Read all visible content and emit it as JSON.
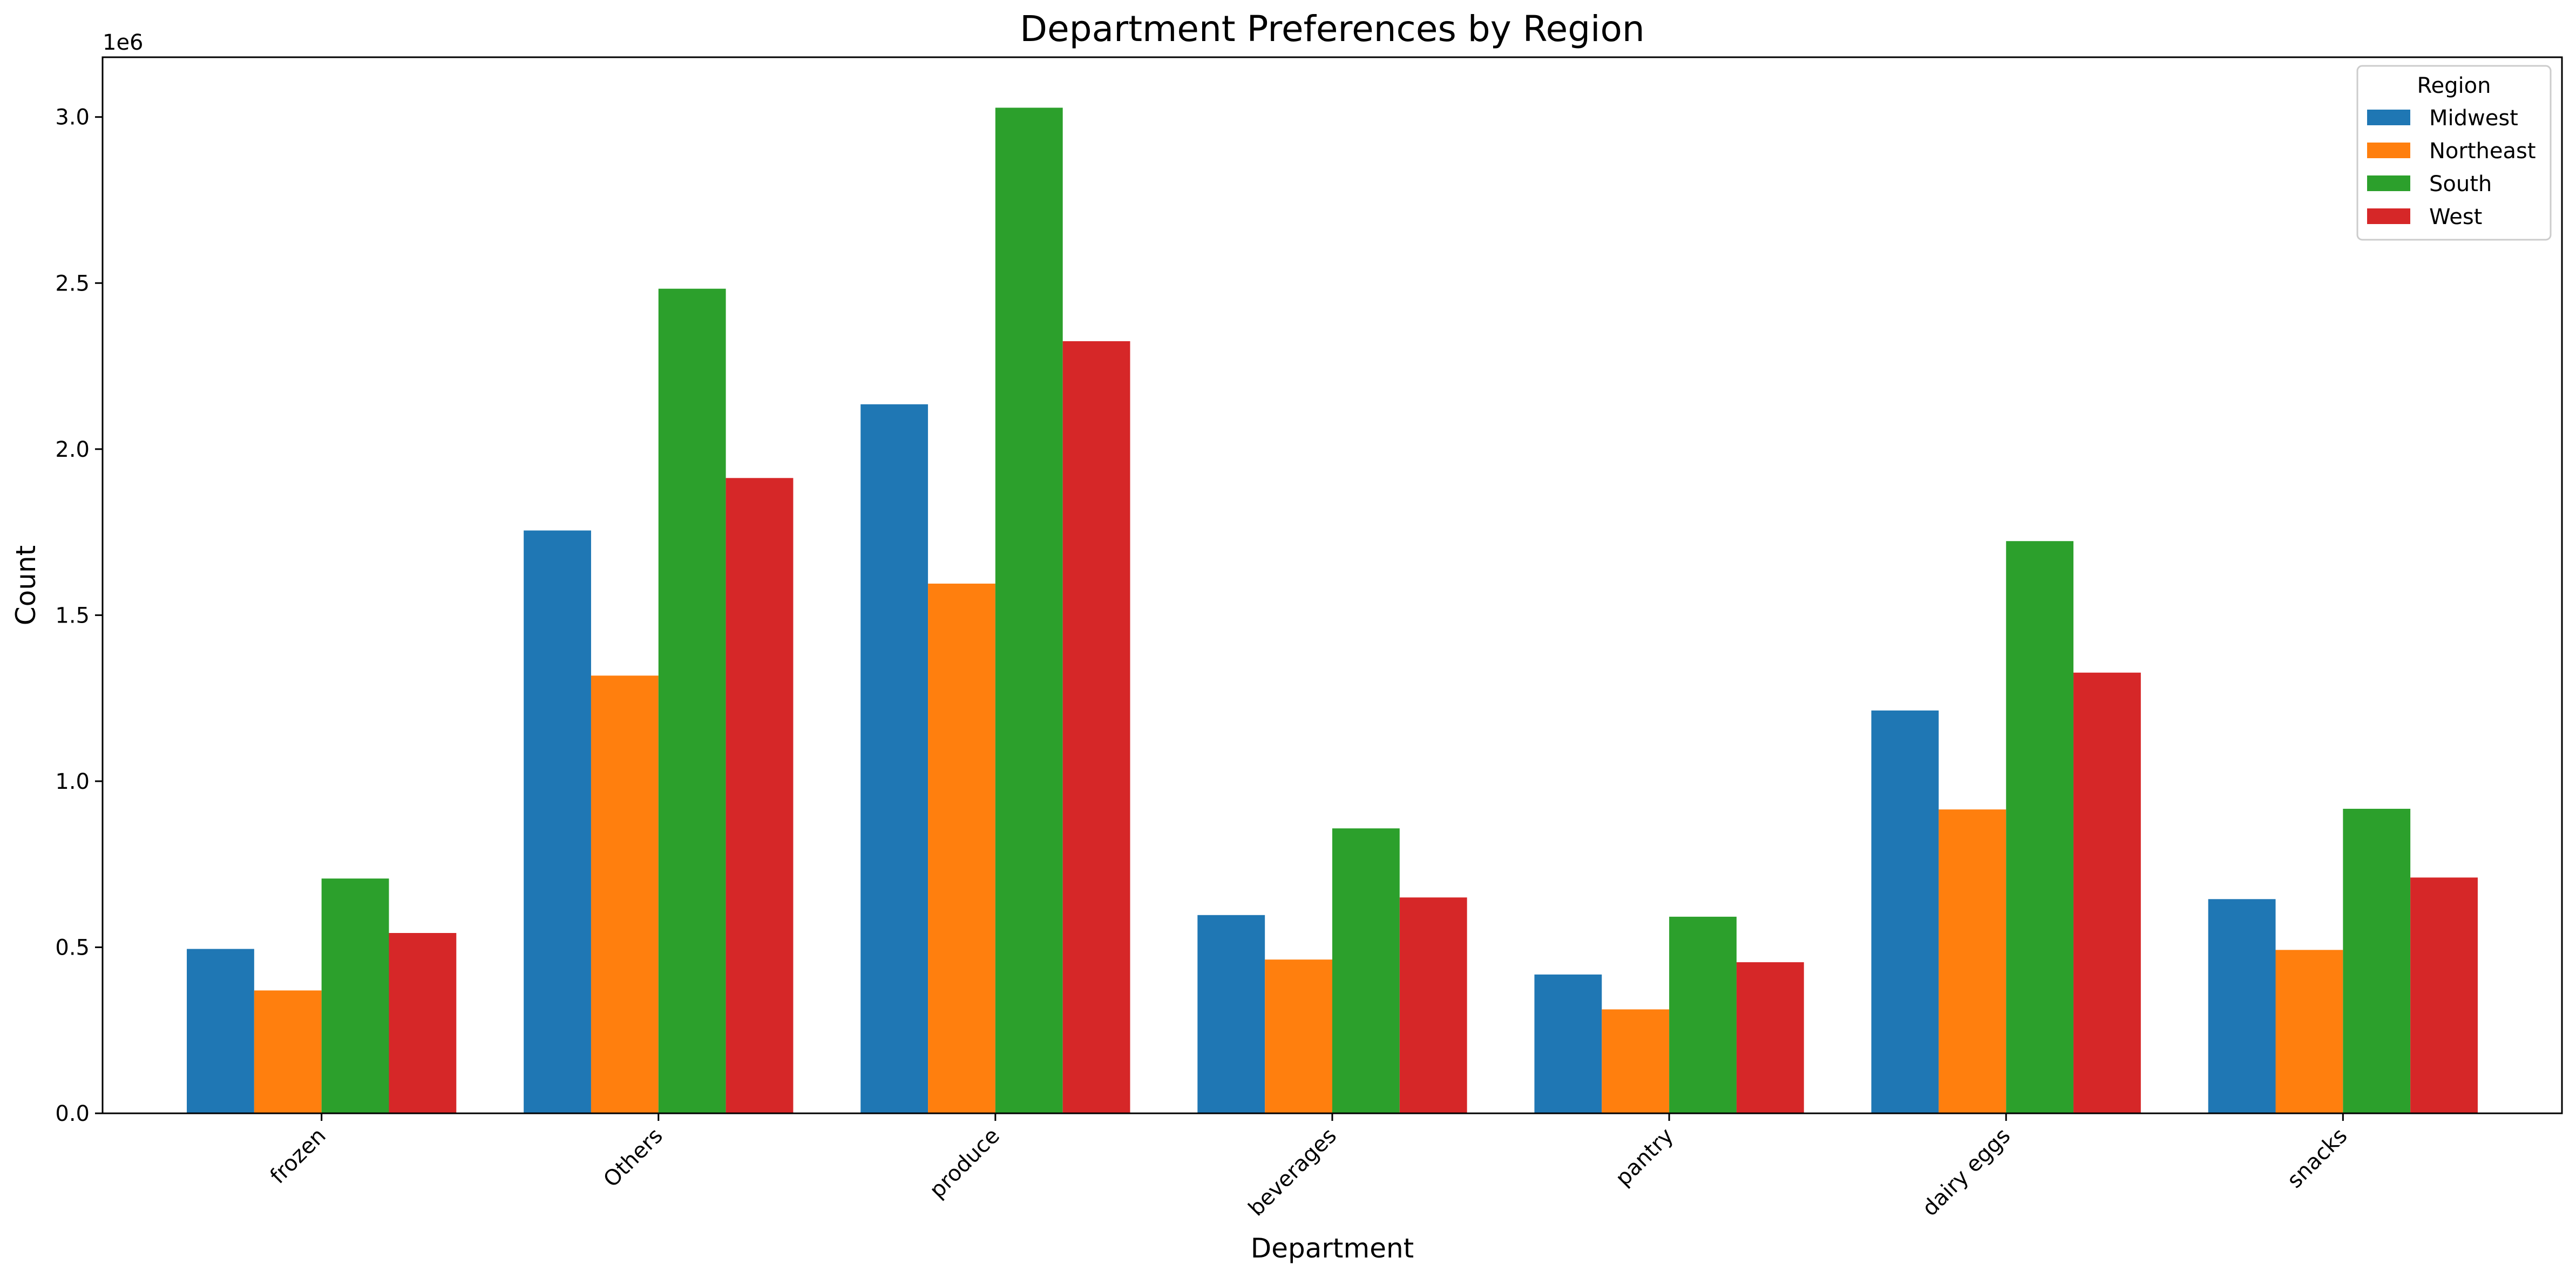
{
  "chart_data": {
    "type": "bar",
    "title": "Department Preferences by Region",
    "xlabel": "Department",
    "ylabel": "Count",
    "y_offset_label": "1e6",
    "y_scale": 1000000,
    "ylim": [
      0,
      3180000
    ],
    "yticks": [
      0,
      500000,
      1000000,
      1500000,
      2000000,
      2500000,
      3000000
    ],
    "ytick_labels": [
      "0.0",
      "0.5",
      "1.0",
      "1.5",
      "2.0",
      "2.5",
      "3.0"
    ],
    "grid": false,
    "categories": [
      "frozen",
      "Others",
      "produce",
      "beverages",
      "pantry",
      "dairy eggs",
      "snacks"
    ],
    "legend": {
      "title": "Region",
      "placement": "top-right"
    },
    "series": [
      {
        "name": "Midwest",
        "color": "#1f77b4",
        "values": [
          495000,
          1755000,
          2135000,
          597000,
          418000,
          1213000,
          645000
        ]
      },
      {
        "name": "Northeast",
        "color": "#ff7f0e",
        "values": [
          370000,
          1318000,
          1595000,
          463000,
          313000,
          915000,
          492000
        ]
      },
      {
        "name": "South",
        "color": "#2ca02c",
        "values": [
          707000,
          2483000,
          3028000,
          858000,
          592000,
          1723000,
          917000
        ]
      },
      {
        "name": "West",
        "color": "#d62728",
        "values": [
          543000,
          1913000,
          2325000,
          650000,
          455000,
          1327000,
          710000
        ]
      }
    ]
  }
}
